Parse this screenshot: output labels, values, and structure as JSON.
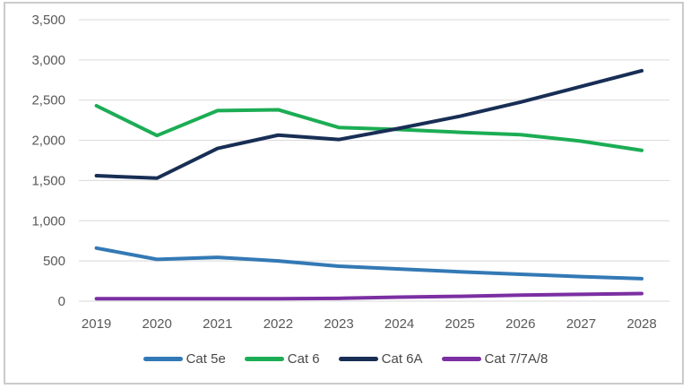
{
  "chart_data": {
    "type": "line",
    "title": "",
    "xlabel": "",
    "ylabel": "",
    "categories": [
      "2019",
      "2020",
      "2021",
      "2022",
      "2023",
      "2024",
      "2025",
      "2026",
      "2027",
      "2028"
    ],
    "series": [
      {
        "name": "Cat 5e",
        "color": "#3379b5",
        "values": [
          660,
          520,
          545,
          500,
          435,
          400,
          365,
          335,
          305,
          280
        ]
      },
      {
        "name": "Cat 6",
        "color": "#1cad54",
        "values": [
          2430,
          2060,
          2370,
          2380,
          2160,
          2135,
          2100,
          2070,
          1990,
          1875
        ]
      },
      {
        "name": "Cat 6A",
        "color": "#182e55",
        "values": [
          1560,
          1530,
          1900,
          2065,
          2010,
          2150,
          2300,
          2475,
          2670,
          2865
        ]
      },
      {
        "name": "Cat 7/7A/8",
        "color": "#7b2fa2",
        "values": [
          30,
          30,
          30,
          30,
          35,
          50,
          60,
          75,
          85,
          95
        ]
      }
    ],
    "ylim": [
      0,
      3500
    ],
    "ytick_step": 500,
    "ytick_labels": [
      "0",
      "500",
      "1,000",
      "1,500",
      "2,000",
      "2,500",
      "3,000",
      "3,500"
    ],
    "grid": true,
    "grid_color": "#d9d9d9",
    "tick_text_color": "#595959",
    "frame_border_color": "#cbcbcb",
    "legend_position": "bottom",
    "line_width": 4
  }
}
